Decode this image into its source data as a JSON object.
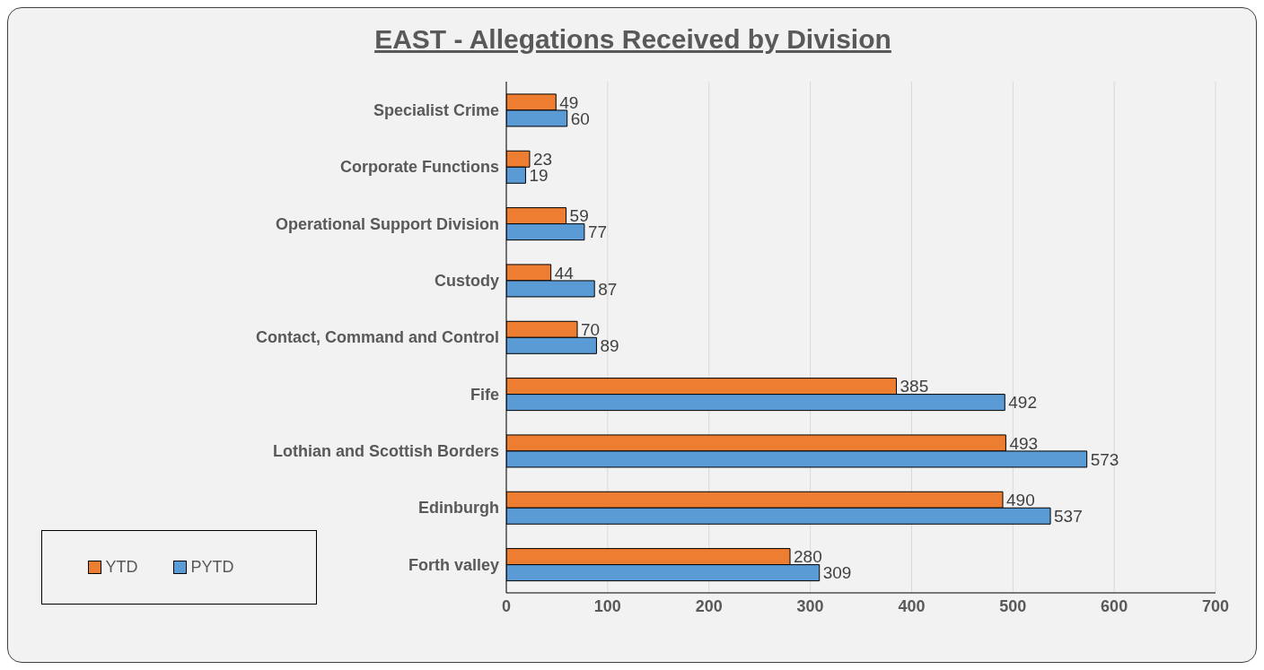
{
  "chart_data": {
    "type": "bar",
    "orientation": "horizontal",
    "title": "EAST - Allegations Received by Division",
    "categories": [
      "Specialist Crime",
      "Corporate Functions",
      "Operational Support Division",
      "Custody",
      "Contact, Command and Control",
      "Fife",
      "Lothian and Scottish Borders",
      "Edinburgh",
      "Forth valley"
    ],
    "series": [
      {
        "name": "YTD",
        "color": "#ed7d31",
        "values": [
          49,
          23,
          59,
          44,
          70,
          385,
          493,
          490,
          280
        ]
      },
      {
        "name": "PYTD",
        "color": "#5b9bd5",
        "values": [
          60,
          19,
          77,
          87,
          89,
          492,
          573,
          537,
          309
        ]
      }
    ],
    "xlim": [
      0,
      700
    ],
    "xticks": [
      0,
      100,
      200,
      300,
      400,
      500,
      600,
      700
    ],
    "grid": "x",
    "legend": "bottom left",
    "data_labels": true
  }
}
